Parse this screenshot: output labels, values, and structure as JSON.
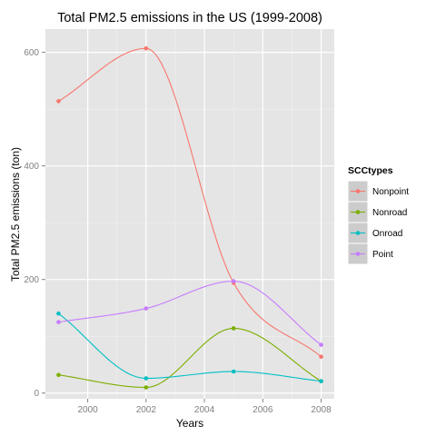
{
  "chart_data": {
    "type": "line",
    "title": "Total PM2.5 emissions in the US (1999-2008)",
    "xlabel": "Years",
    "ylabel": "Total PM2.5 emissions (ton)",
    "x": [
      1999,
      2002,
      2005,
      2008
    ],
    "x_ticks": [
      2000,
      2002,
      2004,
      2006,
      2008
    ],
    "y_ticks": [
      0,
      200,
      400,
      600
    ],
    "xlim": [
      1998.55,
      2008.45
    ],
    "ylim": [
      -10,
      641
    ],
    "grid": true,
    "smoothed": true,
    "legend": {
      "title": "SCCtypes",
      "position": "right"
    },
    "series": [
      {
        "name": "Nonpoint",
        "color": "#F8766D",
        "values": [
          514,
          607,
          194,
          64
        ]
      },
      {
        "name": "Nonroad",
        "color": "#7CAE00",
        "values": [
          32,
          10,
          114,
          21
        ]
      },
      {
        "name": "Onroad",
        "color": "#00BFC4",
        "values": [
          140,
          26,
          38,
          21
        ]
      },
      {
        "name": "Point",
        "color": "#C77CFF",
        "values": [
          125,
          149,
          197,
          85
        ]
      }
    ]
  }
}
